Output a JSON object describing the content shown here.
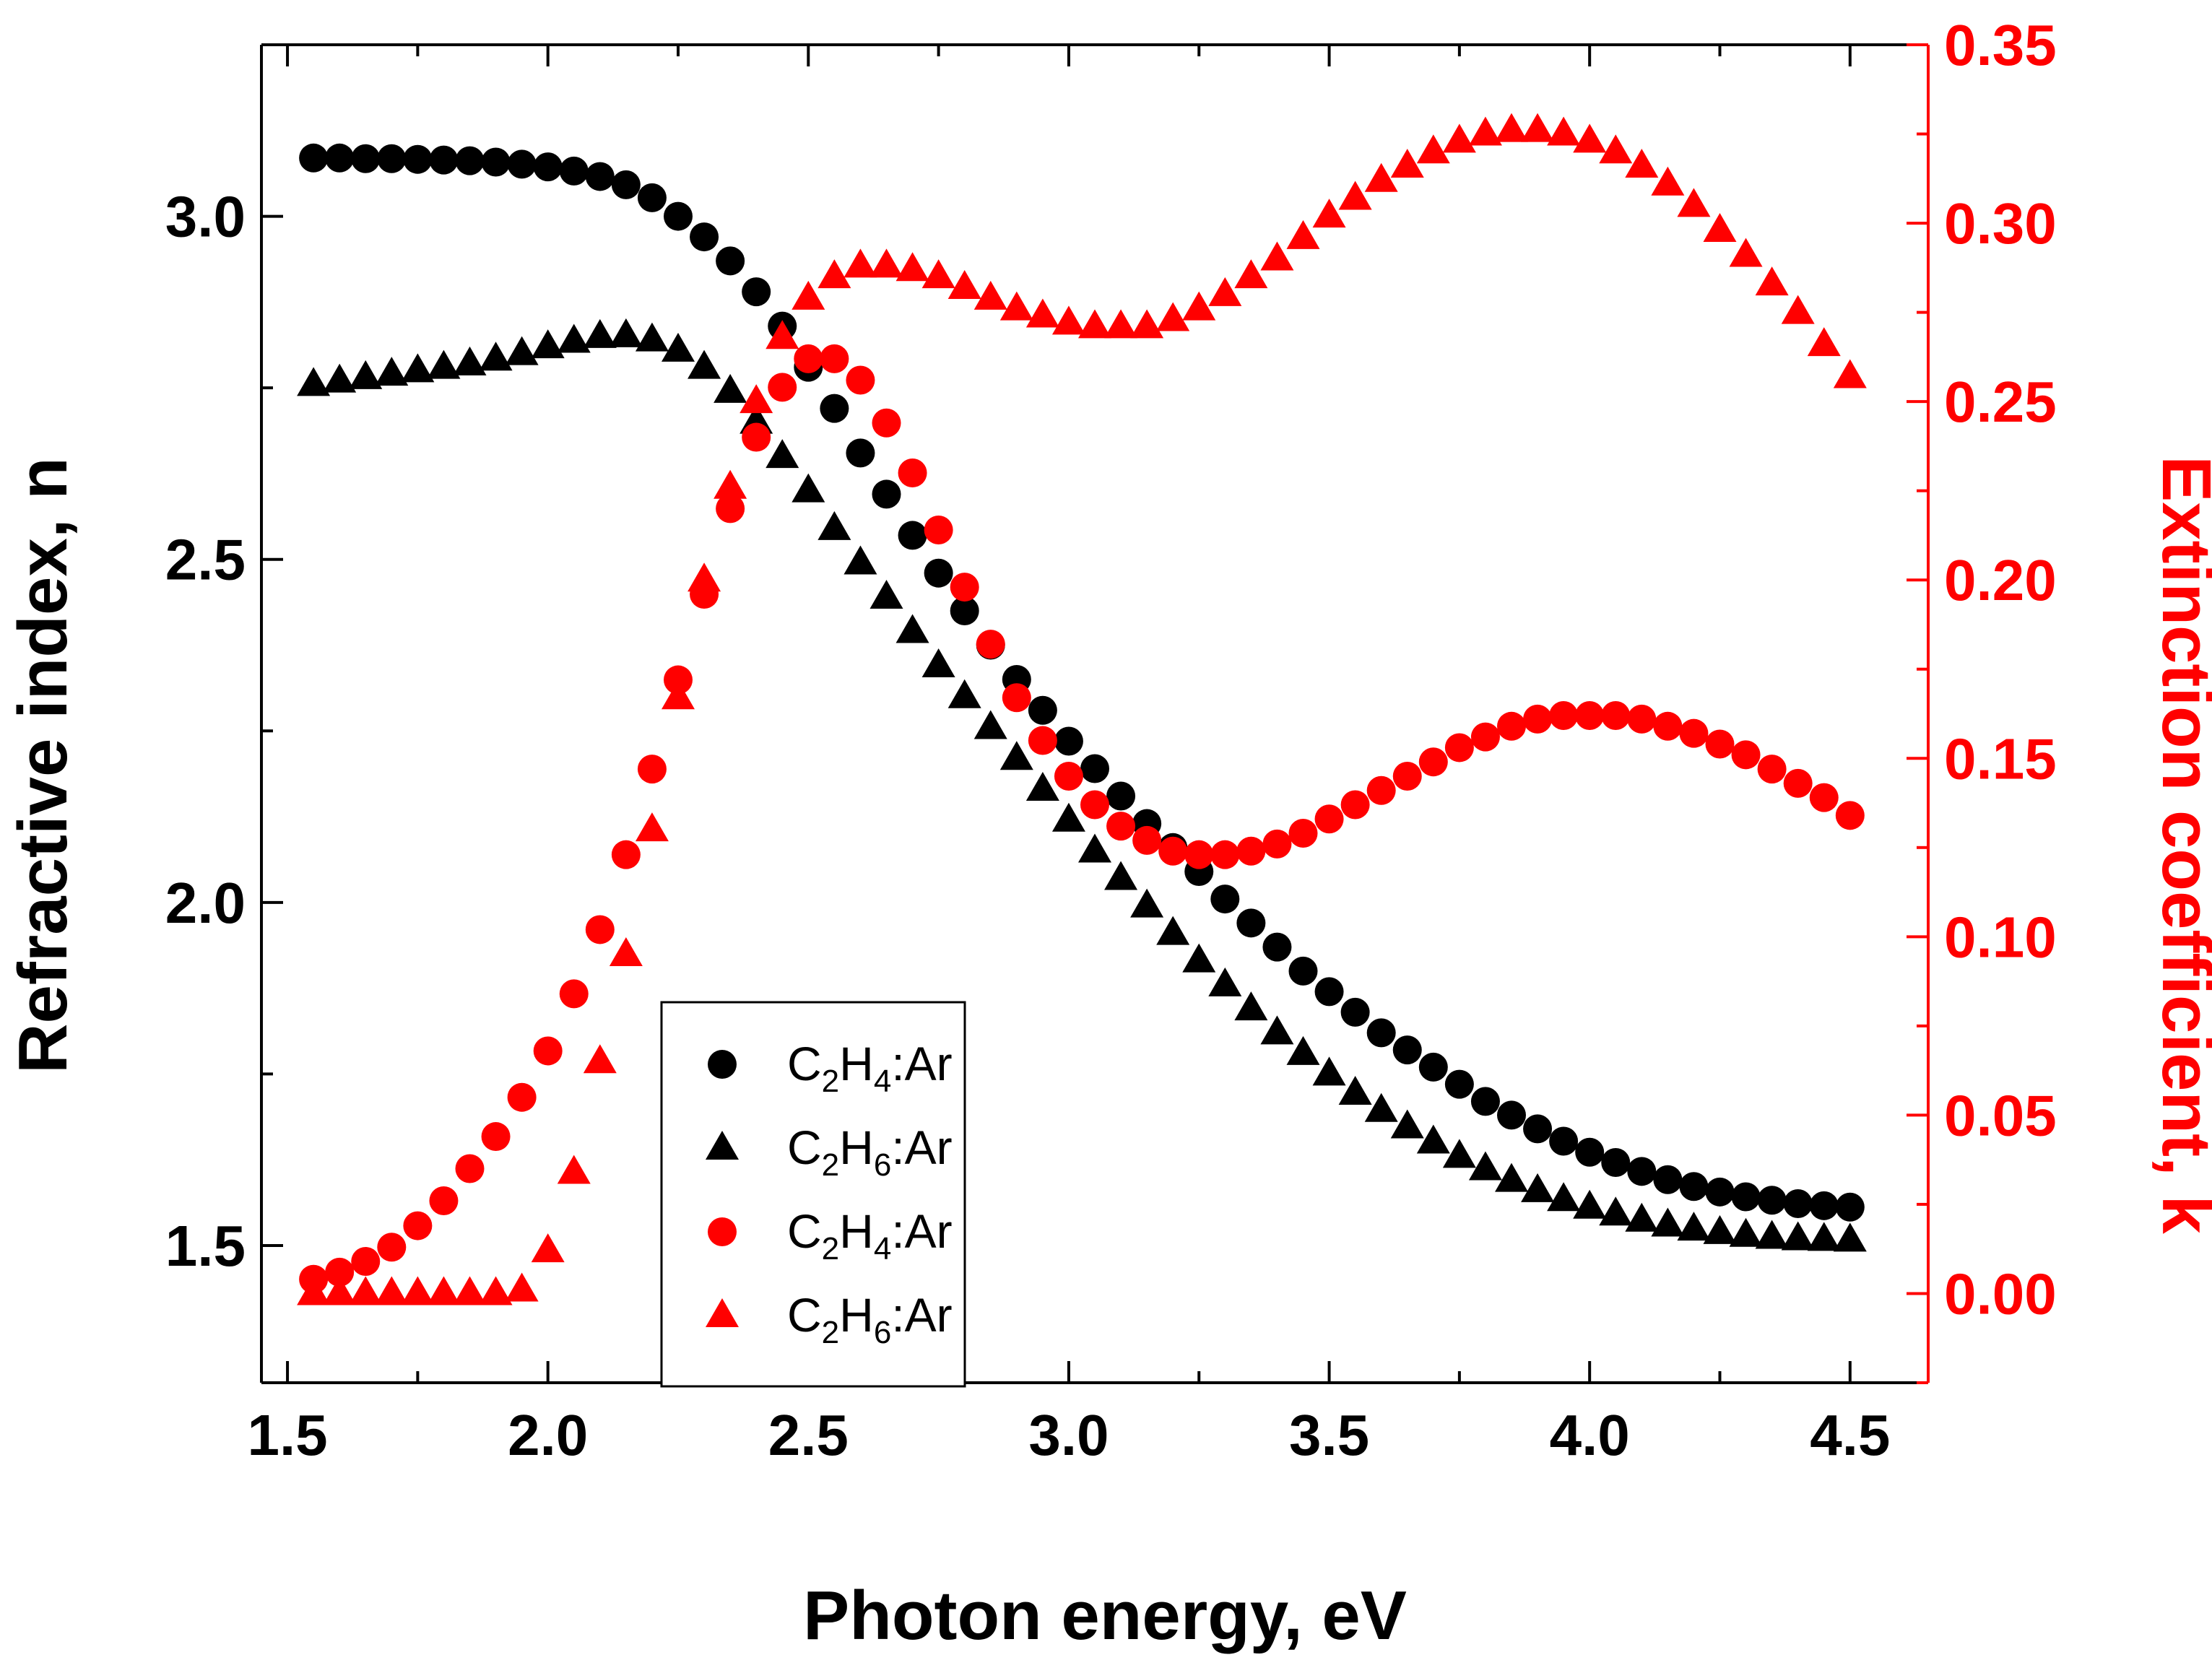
{
  "chart_data": {
    "type": "scatter",
    "title": "",
    "xlabel": "Photon energy, eV",
    "ylabel_left": "Refractive index, n",
    "ylabel_right": "Extinction coefficient, k",
    "xlim": [
      1.45,
      4.65
    ],
    "ylim_left": [
      1.3,
      3.25
    ],
    "ylim_right": [
      -0.025,
      0.35
    ],
    "x_ticks": [
      "1.5",
      "2.0",
      "2.5",
      "3.0",
      "3.5",
      "4.0",
      "4.5"
    ],
    "y_left_ticks": [
      "1.5",
      "2.0",
      "2.5",
      "3.0"
    ],
    "y_right_ticks": [
      "0.00",
      "0.05",
      "0.10",
      "0.15",
      "0.20",
      "0.25",
      "0.30",
      "0.35"
    ],
    "grid": false,
    "legend_position": "bottom-left",
    "colors": {
      "black": "#000000",
      "red": "#ff0000",
      "right_axis": "#ff0000"
    },
    "x": [
      1.55,
      1.6,
      1.65,
      1.7,
      1.75,
      1.8,
      1.85,
      1.9,
      1.95,
      2.0,
      2.05,
      2.1,
      2.15,
      2.2,
      2.25,
      2.3,
      2.35,
      2.4,
      2.45,
      2.5,
      2.55,
      2.6,
      2.65,
      2.7,
      2.75,
      2.8,
      2.85,
      2.9,
      2.95,
      3.0,
      3.05,
      3.1,
      3.15,
      3.2,
      3.25,
      3.3,
      3.35,
      3.4,
      3.45,
      3.5,
      3.55,
      3.6,
      3.65,
      3.7,
      3.75,
      3.8,
      3.85,
      3.9,
      3.95,
      4.0,
      4.05,
      4.1,
      4.15,
      4.2,
      4.25,
      4.3,
      4.35,
      4.4,
      4.45,
      4.5
    ],
    "series": [
      {
        "name": "C2H4:Ar",
        "sub1": "2",
        "sub2": "4",
        "axis": "left",
        "marker": "circle",
        "color": "#000000",
        "values": [
          3.085,
          3.085,
          3.084,
          3.084,
          3.083,
          3.082,
          3.081,
          3.079,
          3.076,
          3.072,
          3.066,
          3.058,
          3.046,
          3.027,
          3.0,
          2.97,
          2.935,
          2.89,
          2.84,
          2.78,
          2.72,
          2.655,
          2.595,
          2.535,
          2.48,
          2.425,
          2.375,
          2.325,
          2.28,
          2.235,
          2.195,
          2.155,
          2.115,
          2.08,
          2.045,
          2.005,
          1.97,
          1.935,
          1.9,
          1.87,
          1.84,
          1.81,
          1.785,
          1.76,
          1.735,
          1.71,
          1.69,
          1.67,
          1.652,
          1.636,
          1.621,
          1.608,
          1.596,
          1.586,
          1.578,
          1.571,
          1.566,
          1.561,
          1.558,
          1.556
        ]
      },
      {
        "name": "C2H6:Ar",
        "sub1": "2",
        "sub2": "6",
        "axis": "left",
        "marker": "triangle",
        "color": "#000000",
        "values": [
          2.755,
          2.76,
          2.765,
          2.77,
          2.775,
          2.78,
          2.785,
          2.792,
          2.8,
          2.81,
          2.818,
          2.825,
          2.826,
          2.82,
          2.805,
          2.78,
          2.745,
          2.7,
          2.65,
          2.6,
          2.545,
          2.495,
          2.445,
          2.395,
          2.345,
          2.3,
          2.255,
          2.21,
          2.165,
          2.12,
          2.075,
          2.035,
          1.995,
          1.955,
          1.915,
          1.88,
          1.845,
          1.81,
          1.78,
          1.75,
          1.722,
          1.697,
          1.673,
          1.651,
          1.63,
          1.612,
          1.595,
          1.58,
          1.567,
          1.556,
          1.546,
          1.537,
          1.53,
          1.524,
          1.519,
          1.515,
          1.512,
          1.51,
          1.509,
          1.508
        ]
      },
      {
        "name": "C2H4:Ar",
        "sub1": "2",
        "sub2": "4",
        "axis": "right",
        "marker": "circle",
        "color": "#ff0000",
        "values": [
          0.004,
          0.006,
          0.009,
          0.013,
          0.019,
          0.026,
          0.035,
          0.044,
          0.055,
          0.068,
          0.084,
          0.102,
          0.123,
          0.147,
          0.172,
          0.196,
          0.22,
          0.24,
          0.254,
          0.262,
          0.262,
          0.256,
          0.244,
          0.23,
          0.214,
          0.198,
          0.182,
          0.167,
          0.155,
          0.145,
          0.137,
          0.131,
          0.127,
          0.124,
          0.123,
          0.123,
          0.124,
          0.126,
          0.129,
          0.133,
          0.137,
          0.141,
          0.145,
          0.149,
          0.153,
          0.156,
          0.159,
          0.161,
          0.162,
          0.162,
          0.162,
          0.161,
          0.159,
          0.157,
          0.154,
          0.151,
          0.147,
          0.143,
          0.139,
          0.134
        ]
      },
      {
        "name": "C2H6:Ar",
        "sub1": "2",
        "sub2": "6",
        "axis": "right",
        "marker": "triangle",
        "color": "#ff0000",
        "values": [
          0.0,
          0.0,
          0.0,
          0.0,
          0.0,
          0.0,
          0.0,
          0.0,
          0.001,
          0.012,
          0.034,
          0.065,
          0.095,
          0.13,
          0.167,
          0.2,
          0.226,
          0.25,
          0.268,
          0.279,
          0.285,
          0.288,
          0.288,
          0.287,
          0.285,
          0.282,
          0.279,
          0.276,
          0.274,
          0.272,
          0.271,
          0.271,
          0.271,
          0.273,
          0.276,
          0.28,
          0.285,
          0.29,
          0.296,
          0.302,
          0.307,
          0.312,
          0.316,
          0.32,
          0.323,
          0.325,
          0.326,
          0.326,
          0.325,
          0.323,
          0.32,
          0.316,
          0.311,
          0.305,
          0.298,
          0.291,
          0.283,
          0.275,
          0.266,
          0.257
        ]
      }
    ]
  }
}
